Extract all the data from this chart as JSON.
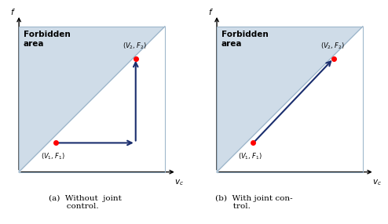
{
  "forbidden_color": "#cfdce8",
  "allowed_color": "#ffffff",
  "diagonal_color": "#a0b8cc",
  "border_color": "#a0b8cc",
  "arrow_color": "#1a2e6e",
  "dot_color": "#ff0000",
  "axis_color": "#000000",
  "p1": [
    0.25,
    0.2
  ],
  "p2": [
    0.8,
    0.78
  ],
  "forbidden_label": "Forbidden\narea",
  "xlabel": "$v_c$",
  "ylabel": "$f$",
  "label1": "$(V_1,F_1)$",
  "label2": "$(V_2,F_2)$",
  "caption_a": "(a)  Without  joint\ncontrol.",
  "caption_b": "(b)  With joint con-\ntrol."
}
